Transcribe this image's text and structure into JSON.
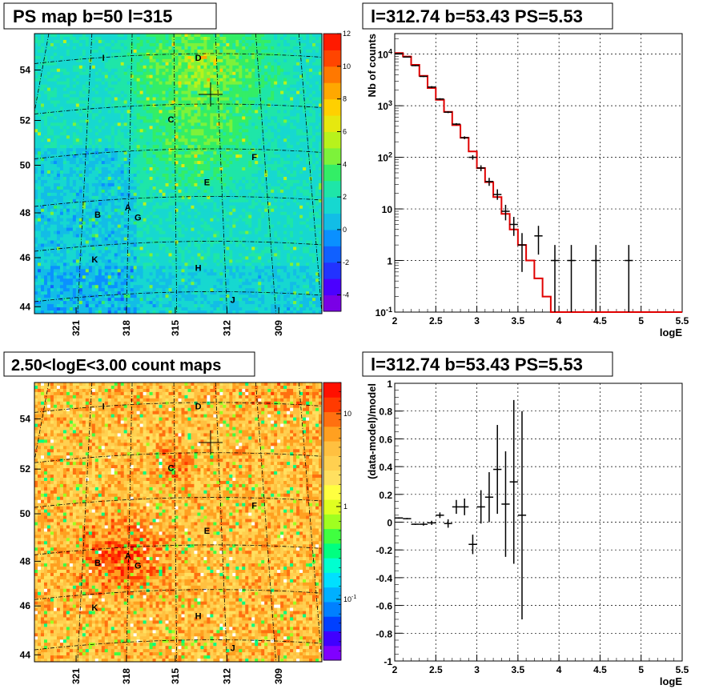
{
  "titles": {
    "map_top": "PS map b=50 l=315",
    "map_bottom": "2.50<logE<3.00 count maps",
    "spectrum": "l=312.74 b=53.43 PS=5.53",
    "residual": "l=312.74 b=53.43 PS=5.53"
  },
  "map_axes": {
    "y_ticks": [
      "54",
      "52",
      "50",
      "48",
      "46",
      "44"
    ],
    "x_ticks": [
      "321",
      "318",
      "315",
      "312",
      "309"
    ]
  },
  "sources": [
    {
      "name": "I",
      "u": 0.24,
      "v": 0.085
    },
    {
      "name": "D",
      "u": 0.57,
      "v": 0.085
    },
    {
      "name": "C",
      "u": 0.475,
      "v": 0.305
    },
    {
      "name": "F",
      "u": 0.765,
      "v": 0.44
    },
    {
      "name": "E",
      "u": 0.6,
      "v": 0.53
    },
    {
      "name": "A",
      "u": 0.325,
      "v": 0.62
    },
    {
      "name": "B",
      "u": 0.22,
      "v": 0.645
    },
    {
      "name": "G",
      "u": 0.36,
      "v": 0.655
    },
    {
      "name": "K",
      "u": 0.21,
      "v": 0.805
    },
    {
      "name": "H",
      "u": 0.57,
      "v": 0.835
    },
    {
      "name": "J",
      "u": 0.69,
      "v": 0.95
    }
  ],
  "colorbar_top": {
    "ticks": [
      "12",
      "10",
      "8",
      "6",
      "4",
      "2",
      "0",
      "-2",
      "-4"
    ],
    "min": -5,
    "max": 12
  },
  "colorbar_bottom": {
    "ticks": [
      "10",
      "1",
      "10^-1"
    ]
  },
  "chart_data": [
    {
      "type": "histogram",
      "title": "l=312.74 b=53.43 PS=5.53",
      "xlabel": "logE",
      "ylabel": "Nb of counts",
      "xlim": [
        2,
        5.5
      ],
      "ylim": [
        0.1,
        25000
      ],
      "yscale": "log",
      "x_ticks": [
        "2",
        "2.5",
        "3",
        "3.5",
        "4",
        "4.5",
        "5",
        "5.5"
      ],
      "y_ticks": [
        "10^-1",
        "1",
        "10",
        "10^2",
        "10^3",
        "10^4"
      ],
      "model_color": "#e00000",
      "model_bins": [
        {
          "x0": 2.0,
          "x1": 2.1,
          "y": 10500
        },
        {
          "x0": 2.1,
          "x1": 2.2,
          "y": 9000
        },
        {
          "x0": 2.2,
          "x1": 2.3,
          "y": 6200
        },
        {
          "x0": 2.3,
          "x1": 2.4,
          "y": 3800
        },
        {
          "x0": 2.4,
          "x1": 2.5,
          "y": 2200
        },
        {
          "x0": 2.5,
          "x1": 2.6,
          "y": 1300
        },
        {
          "x0": 2.6,
          "x1": 2.7,
          "y": 760
        },
        {
          "x0": 2.7,
          "x1": 2.8,
          "y": 420
        },
        {
          "x0": 2.8,
          "x1": 2.9,
          "y": 240
        },
        {
          "x0": 2.9,
          "x1": 3.0,
          "y": 130
        },
        {
          "x0": 3.0,
          "x1": 3.1,
          "y": 62
        },
        {
          "x0": 3.1,
          "x1": 3.2,
          "y": 33
        },
        {
          "x0": 3.2,
          "x1": 3.3,
          "y": 17
        },
        {
          "x0": 3.3,
          "x1": 3.4,
          "y": 8
        },
        {
          "x0": 3.4,
          "x1": 3.5,
          "y": 4
        },
        {
          "x0": 3.5,
          "x1": 3.6,
          "y": 2
        },
        {
          "x0": 3.6,
          "x1": 3.7,
          "y": 1
        },
        {
          "x0": 3.7,
          "x1": 3.8,
          "y": 0.45
        },
        {
          "x0": 3.8,
          "x1": 3.9,
          "y": 0.2
        },
        {
          "x0": 3.9,
          "x1": 4.0,
          "y": 0.1
        },
        {
          "x0": 4.0,
          "x1": 5.5,
          "y": 0.1
        }
      ],
      "points": [
        {
          "x": 2.05,
          "y": 10200,
          "lo": 10000,
          "hi": 10400
        },
        {
          "x": 2.15,
          "y": 8800,
          "lo": 8600,
          "hi": 9000
        },
        {
          "x": 2.25,
          "y": 6000,
          "lo": 5850,
          "hi": 6150
        },
        {
          "x": 2.35,
          "y": 3700,
          "lo": 3600,
          "hi": 3800
        },
        {
          "x": 2.45,
          "y": 2300,
          "lo": 2200,
          "hi": 2400
        },
        {
          "x": 2.55,
          "y": 1350,
          "lo": 1300,
          "hi": 1400
        },
        {
          "x": 2.65,
          "y": 750,
          "lo": 720,
          "hi": 780
        },
        {
          "x": 2.75,
          "y": 440,
          "lo": 420,
          "hi": 460
        },
        {
          "x": 2.85,
          "y": 240,
          "lo": 225,
          "hi": 255
        },
        {
          "x": 2.95,
          "y": 100,
          "lo": 90,
          "hi": 110
        },
        {
          "x": 3.05,
          "y": 62,
          "lo": 54,
          "hi": 70
        },
        {
          "x": 3.15,
          "y": 34,
          "lo": 28,
          "hi": 40
        },
        {
          "x": 3.25,
          "y": 19,
          "lo": 15,
          "hi": 24
        },
        {
          "x": 3.35,
          "y": 9,
          "lo": 6,
          "hi": 12
        },
        {
          "x": 3.45,
          "y": 5,
          "lo": 3,
          "hi": 7
        },
        {
          "x": 3.55,
          "y": 2,
          "lo": 0.6,
          "hi": 3.4
        },
        {
          "x": 3.75,
          "y": 3,
          "lo": 1.3,
          "hi": 4.7
        },
        {
          "x": 3.95,
          "y": 1,
          "lo": 0.1,
          "hi": 2
        },
        {
          "x": 4.15,
          "y": 1,
          "lo": 0.1,
          "hi": 2
        },
        {
          "x": 4.45,
          "y": 1,
          "lo": 0.1,
          "hi": 2
        },
        {
          "x": 4.85,
          "y": 1,
          "lo": 0.1,
          "hi": 2
        }
      ]
    },
    {
      "type": "scatter",
      "title": "l=312.74 b=53.43 PS=5.53",
      "xlabel": "logE",
      "ylabel": "(data-model)/model",
      "xlim": [
        2,
        5.5
      ],
      "ylim": [
        -1,
        1
      ],
      "x_ticks": [
        "2",
        "2.5",
        "3",
        "3.5",
        "4",
        "4.5",
        "5",
        "5.5"
      ],
      "y_ticks": [
        "1",
        "0.8",
        "0.6",
        "0.4",
        "0.2",
        "0",
        "-0.2",
        "-0.4",
        "-0.6",
        "-0.8",
        "-1"
      ],
      "points": [
        {
          "x": 2.05,
          "y": 0.03,
          "lo": 0.025,
          "hi": 0.035
        },
        {
          "x": 2.15,
          "y": 0.025,
          "lo": 0.02,
          "hi": 0.03
        },
        {
          "x": 2.25,
          "y": -0.015,
          "lo": -0.02,
          "hi": -0.01
        },
        {
          "x": 2.35,
          "y": -0.015,
          "lo": -0.025,
          "hi": -0.005
        },
        {
          "x": 2.45,
          "y": -0.005,
          "lo": -0.02,
          "hi": 0.01
        },
        {
          "x": 2.55,
          "y": 0.05,
          "lo": 0.03,
          "hi": 0.07
        },
        {
          "x": 2.65,
          "y": -0.01,
          "lo": -0.04,
          "hi": 0.02
        },
        {
          "x": 2.75,
          "y": 0.11,
          "lo": 0.06,
          "hi": 0.16
        },
        {
          "x": 2.85,
          "y": 0.11,
          "lo": 0.05,
          "hi": 0.17
        },
        {
          "x": 2.95,
          "y": -0.16,
          "lo": -0.23,
          "hi": -0.09
        },
        {
          "x": 3.05,
          "y": 0.11,
          "lo": -0.01,
          "hi": 0.23
        },
        {
          "x": 3.15,
          "y": 0.18,
          "lo": 0.0,
          "hi": 0.36
        },
        {
          "x": 3.25,
          "y": 0.38,
          "lo": 0.06,
          "hi": 0.7
        },
        {
          "x": 3.35,
          "y": 0.13,
          "lo": -0.25,
          "hi": 0.51
        },
        {
          "x": 3.45,
          "y": 0.29,
          "lo": -0.3,
          "hi": 0.88
        },
        {
          "x": 3.55,
          "y": 0.05,
          "lo": -0.7,
          "hi": 0.8
        }
      ]
    }
  ]
}
